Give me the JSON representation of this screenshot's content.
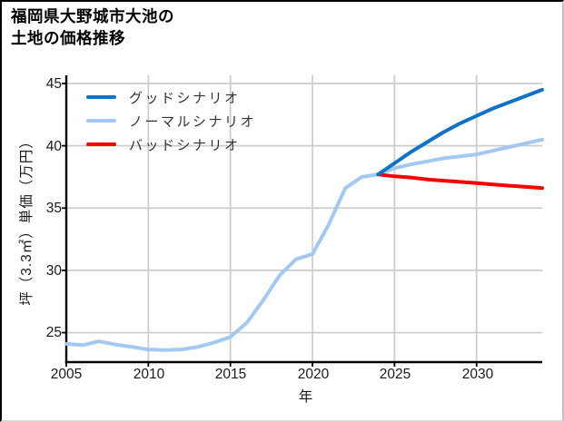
{
  "title": {
    "line1": "福岡県大野城市大池の",
    "line2": "土地の価格推移"
  },
  "chart": {
    "xlabel": "年",
    "ylabel": "坪（3.3㎡）単価（万円）",
    "xtick_labels": [
      "2005",
      "2010",
      "2015",
      "2020",
      "2025",
      "2030"
    ],
    "ytick_labels": [
      "45",
      "40",
      "35",
      "30",
      "25"
    ],
    "legend": {
      "good": "グッドシナリオ",
      "normal": "ノーマルシナリオ",
      "bad": "バッドシナリオ"
    }
  },
  "chart_data": {
    "type": "line",
    "title": "福岡県大野城市大池の土地の価格推移",
    "xlabel": "年",
    "ylabel": "坪（3.3㎡）単価（万円）",
    "xlim": [
      2005,
      2034
    ],
    "ylim": [
      22.6,
      45.7
    ],
    "xticks": [
      2005,
      2010,
      2015,
      2020,
      2025,
      2030
    ],
    "yticks": [
      25,
      30,
      35,
      40,
      45
    ],
    "grid": true,
    "legend_position": "upper-left",
    "colors": {
      "good": "#0e73c7",
      "normal": "#a1c9f1",
      "bad": "#f80000",
      "grid": "#cccccc",
      "axis": "#000000"
    },
    "series": [
      {
        "name": "グッドシナリオ",
        "key": "good",
        "color": "#0e73c7",
        "x": [
          2024,
          2025,
          2026,
          2027,
          2028,
          2029,
          2030,
          2031,
          2032,
          2033,
          2034
        ],
        "y": [
          37.7,
          38.6,
          39.5,
          40.3,
          41.1,
          41.8,
          42.4,
          43.0,
          43.5,
          44.0,
          44.5
        ]
      },
      {
        "name": "ノーマルシナリオ",
        "key": "normal",
        "color": "#a1c9f1",
        "x": [
          2005,
          2006,
          2007,
          2008,
          2009,
          2010,
          2011,
          2012,
          2013,
          2014,
          2015,
          2016,
          2017,
          2018,
          2019,
          2020,
          2021,
          2022,
          2023,
          2024,
          2025,
          2026,
          2027,
          2028,
          2029,
          2030,
          2031,
          2032,
          2033,
          2034
        ],
        "y": [
          24.1,
          24.0,
          24.3,
          24.05,
          23.85,
          23.65,
          23.6,
          23.65,
          23.85,
          24.2,
          24.65,
          25.8,
          27.6,
          29.6,
          30.9,
          31.3,
          33.7,
          36.6,
          37.5,
          37.7,
          38.2,
          38.5,
          38.75,
          39.0,
          39.15,
          39.3,
          39.6,
          39.9,
          40.2,
          40.5
        ]
      },
      {
        "name": "バッドシナリオ",
        "key": "bad",
        "color": "#f80000",
        "x": [
          2024,
          2025,
          2026,
          2027,
          2028,
          2029,
          2030,
          2031,
          2032,
          2033,
          2034
        ],
        "y": [
          37.7,
          37.55,
          37.45,
          37.3,
          37.2,
          37.1,
          37.0,
          36.9,
          36.8,
          36.7,
          36.6
        ]
      }
    ]
  }
}
